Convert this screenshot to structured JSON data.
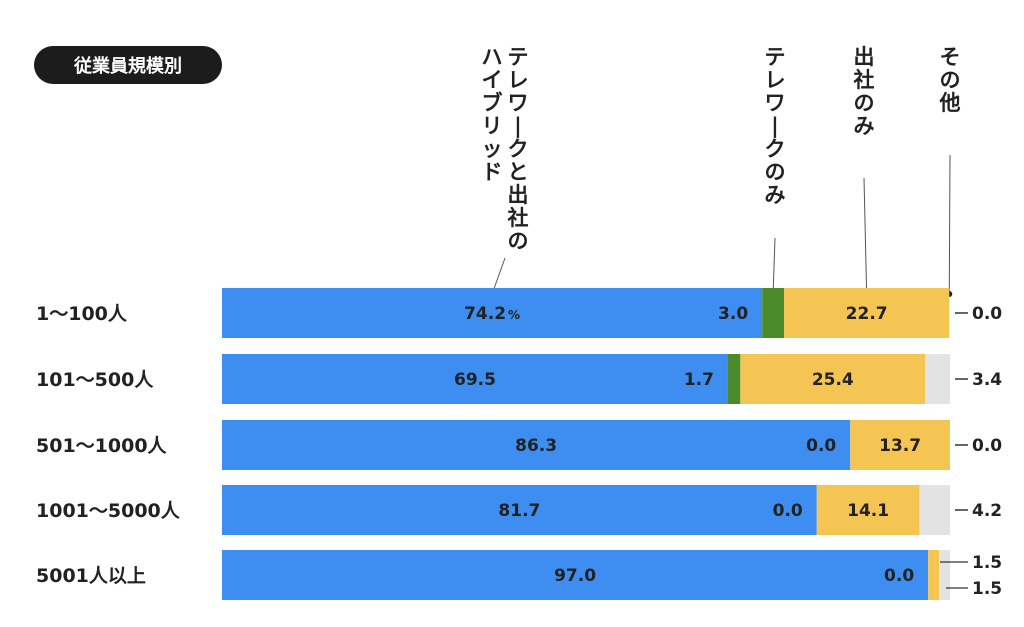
{
  "chart_data": {
    "type": "bar",
    "orientation": "horizontal",
    "stacked": true,
    "normalized": true,
    "title": "従業員規模別",
    "unit": "%",
    "categories": [
      "1〜100人",
      "101〜500人",
      "501〜1000人",
      "1001〜5000人",
      "5001人以上"
    ],
    "series": [
      {
        "name": "テレワークと出社のハイブリッド",
        "label_lines": [
          "テレワークと出社の",
          "ハイブリッド"
        ],
        "color": "#3d8ef0",
        "values": [
          74.2,
          69.5,
          86.3,
          81.7,
          97.0
        ],
        "display": [
          "74.2",
          "69.5",
          "86.3",
          "81.7",
          "97.0"
        ]
      },
      {
        "name": "テレワークのみ",
        "label_lines": [
          "テレワークのみ"
        ],
        "color": "#4a8a28",
        "values": [
          3.0,
          1.7,
          0.0,
          0.0,
          0.0
        ],
        "display": [
          "3.0",
          "1.7",
          "0.0",
          "0.0",
          "0.0"
        ]
      },
      {
        "name": "出社のみ",
        "label_lines": [
          "出社のみ"
        ],
        "color": "#f5c554",
        "values": [
          22.7,
          25.4,
          13.7,
          14.1,
          1.5
        ],
        "display": [
          "22.7",
          "25.4",
          "13.7",
          "14.1",
          "1.5"
        ]
      },
      {
        "name": "その他",
        "label_lines": [
          "その他"
        ],
        "color": "#e3e3e3",
        "values": [
          0.0,
          3.4,
          0.0,
          4.2,
          1.5
        ],
        "display": [
          "0.0",
          "3.4",
          "0.0",
          "4.2",
          "1.5"
        ]
      }
    ],
    "first_value_suffix": "%",
    "xlim": [
      0,
      100
    ],
    "grid": false,
    "legend": "top, vertical labels with leader lines"
  }
}
